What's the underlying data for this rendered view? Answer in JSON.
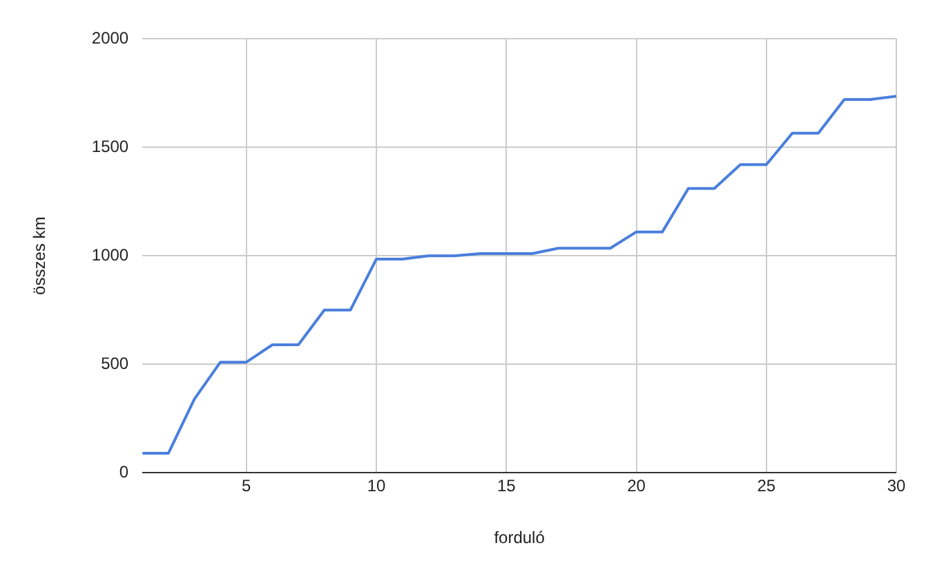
{
  "chart_data": {
    "type": "line",
    "xlabel": "forduló",
    "ylabel": "összes km",
    "x": [
      1,
      2,
      3,
      4,
      5,
      6,
      7,
      8,
      9,
      10,
      11,
      12,
      13,
      14,
      15,
      16,
      17,
      18,
      19,
      20,
      21,
      22,
      23,
      24,
      25,
      26,
      27,
      28,
      29,
      30
    ],
    "series": [
      {
        "color": "#4a7fdc",
        "values": [
          90,
          90,
          340,
          510,
          510,
          590,
          590,
          750,
          750,
          985,
          985,
          1000,
          1000,
          1010,
          1010,
          1010,
          1035,
          1035,
          1035,
          1110,
          1110,
          1310,
          1310,
          1420,
          1420,
          1565,
          1565,
          1720,
          1720,
          1735
        ]
      }
    ],
    "xlim": [
      1,
      30
    ],
    "xticks": [
      5,
      10,
      15,
      20,
      25,
      30
    ],
    "ylim": [
      0,
      2000
    ],
    "yticks": [
      0,
      500,
      1000,
      1500,
      2000
    ],
    "grid": true,
    "legend": false,
    "marker": "none",
    "line_style": "solid"
  }
}
